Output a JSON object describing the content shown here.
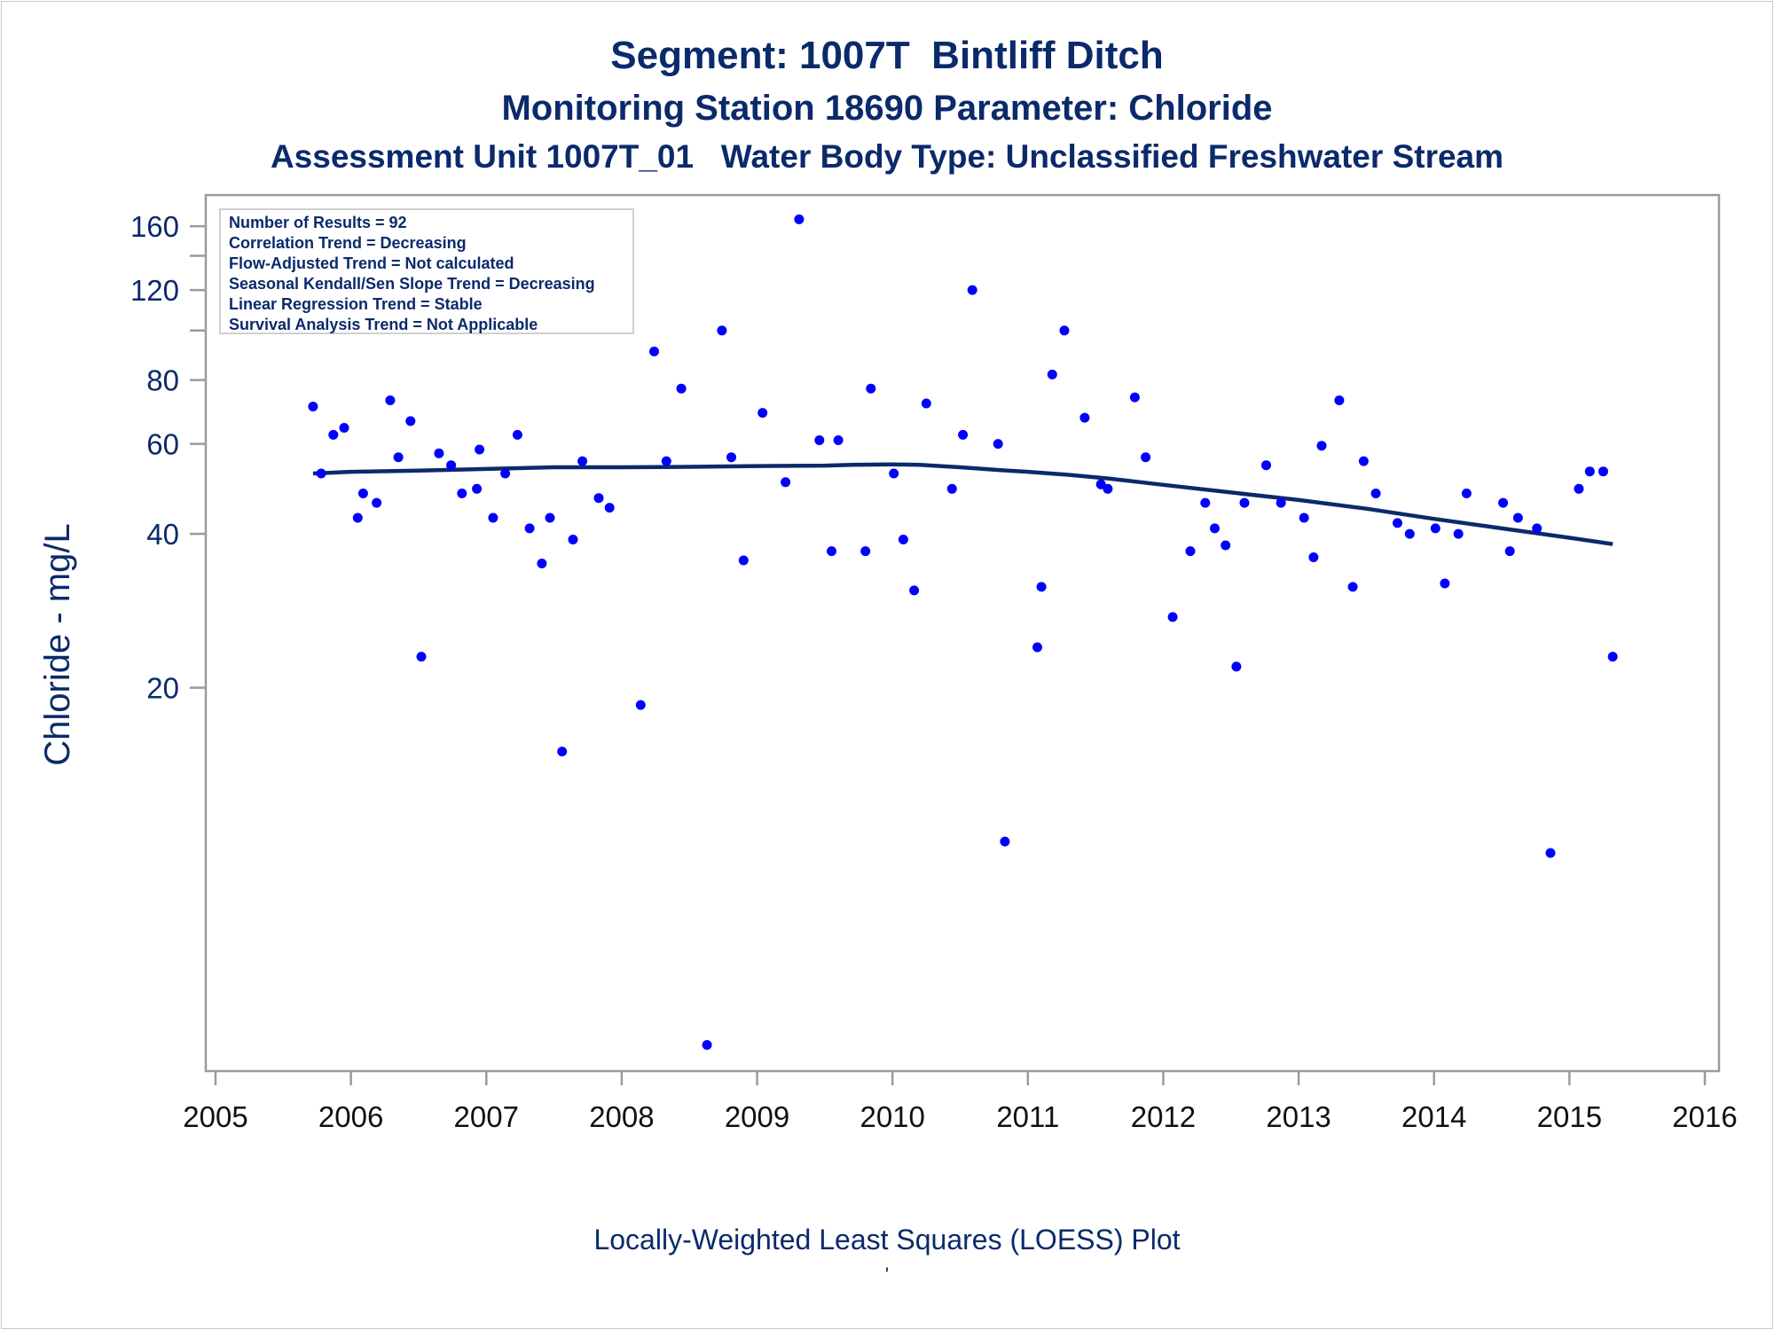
{
  "title": "Segment: 1007T  Bintliff Ditch",
  "subtitle": "Monitoring Station 18690 Parameter: Chloride",
  "subtitle2": "Assessment Unit 1007T_01   Water Body Type: Unclassified Freshwater Stream",
  "footnote": "Locally-Weighted Least Squares (LOESS) Plot",
  "footnote_mark": "'",
  "stats": [
    "Number of Results = 92",
    "Correlation Trend = Decreasing",
    "Flow-Adjusted Trend = Not calculated",
    "Seasonal Kendall/Sen Slope Trend = Decreasing",
    "Linear Regression Trend = Stable",
    "Survival Analysis Trend = Not Applicable"
  ],
  "colors": {
    "text": "#0b2a6b",
    "points": "#0000ff",
    "trend": "#0b2a6b",
    "axis": "#9a9a9a"
  },
  "chart_data": {
    "type": "scatter",
    "xlabel": "",
    "ylabel": "Chloride - mg/L",
    "x_ticks": [
      2005,
      2006,
      2007,
      2008,
      2009,
      2010,
      2011,
      2012,
      2013,
      2014,
      2015,
      2016
    ],
    "y_ticks": [
      20,
      40,
      60,
      80,
      120,
      160
    ],
    "y_scale": "log",
    "xlim": [
      2005,
      2016
    ],
    "ylim": [
      3.7,
      172
    ],
    "grid": false,
    "series": [
      {
        "name": "",
        "type": "scatter",
        "points": [
          [
            2005.72,
            71
          ],
          [
            2005.78,
            52.5
          ],
          [
            2005.87,
            62.5
          ],
          [
            2005.95,
            64.5
          ],
          [
            2006.05,
            43
          ],
          [
            2006.09,
            48
          ],
          [
            2006.19,
            46
          ],
          [
            2006.29,
            73
          ],
          [
            2006.35,
            56.5
          ],
          [
            2006.44,
            66.5
          ],
          [
            2006.52,
            23
          ],
          [
            2006.65,
            57.5
          ],
          [
            2006.74,
            54.5
          ],
          [
            2006.82,
            48
          ],
          [
            2006.93,
            49
          ],
          [
            2006.95,
            58.5
          ],
          [
            2007.05,
            43
          ],
          [
            2007.14,
            52.5
          ],
          [
            2007.23,
            62.5
          ],
          [
            2007.32,
            41
          ],
          [
            2007.41,
            35
          ],
          [
            2007.47,
            43
          ],
          [
            2007.56,
            15
          ],
          [
            2007.64,
            39
          ],
          [
            2007.71,
            55.5
          ],
          [
            2007.83,
            47
          ],
          [
            2007.91,
            45
          ],
          [
            2008.14,
            18.5
          ],
          [
            2008.24,
            91
          ],
          [
            2008.33,
            55.5
          ],
          [
            2008.44,
            77
          ],
          [
            2008.63,
            4
          ],
          [
            2008.74,
            100
          ],
          [
            2008.81,
            56.5
          ],
          [
            2008.9,
            35.5
          ],
          [
            2009.04,
            69
          ],
          [
            2009.21,
            50.5
          ],
          [
            2009.31,
            165
          ],
          [
            2009.46,
            61
          ],
          [
            2009.55,
            37
          ],
          [
            2009.6,
            61
          ],
          [
            2009.8,
            37
          ],
          [
            2009.84,
            77
          ],
          [
            2010.01,
            52.5
          ],
          [
            2010.08,
            39
          ],
          [
            2010.16,
            31
          ],
          [
            2010.25,
            72
          ],
          [
            2010.44,
            49
          ],
          [
            2010.52,
            62.5
          ],
          [
            2010.59,
            120
          ],
          [
            2010.78,
            60
          ],
          [
            2010.83,
            10
          ],
          [
            2011.07,
            24
          ],
          [
            2011.1,
            31.5
          ],
          [
            2011.18,
            82
          ],
          [
            2011.27,
            100
          ],
          [
            2011.42,
            67.5
          ],
          [
            2011.54,
            50
          ],
          [
            2011.59,
            49
          ],
          [
            2011.79,
            74
          ],
          [
            2011.87,
            56.5
          ],
          [
            2012.07,
            27.5
          ],
          [
            2012.2,
            37
          ],
          [
            2012.31,
            46
          ],
          [
            2012.38,
            41
          ],
          [
            2012.46,
            38
          ],
          [
            2012.54,
            22
          ],
          [
            2012.6,
            46
          ],
          [
            2012.76,
            54.5
          ],
          [
            2012.87,
            46
          ],
          [
            2013.04,
            43
          ],
          [
            2013.11,
            36
          ],
          [
            2013.17,
            59.5
          ],
          [
            2013.3,
            73
          ],
          [
            2013.4,
            31.5
          ],
          [
            2013.48,
            55.5
          ],
          [
            2013.57,
            48
          ],
          [
            2013.73,
            42
          ],
          [
            2013.82,
            40
          ],
          [
            2014.01,
            41
          ],
          [
            2014.08,
            32
          ],
          [
            2014.18,
            40
          ],
          [
            2014.24,
            48
          ],
          [
            2014.51,
            46
          ],
          [
            2014.56,
            37
          ],
          [
            2014.62,
            43
          ],
          [
            2014.76,
            41
          ],
          [
            2014.86,
            9.5
          ],
          [
            2015.07,
            49
          ],
          [
            2015.15,
            53
          ],
          [
            2015.25,
            53
          ],
          [
            2015.32,
            23
          ]
        ]
      },
      {
        "name": "",
        "type": "line",
        "points": [
          [
            2005.72,
            52.5
          ],
          [
            2006.0,
            52.9
          ],
          [
            2006.5,
            53.2
          ],
          [
            2007.0,
            53.6
          ],
          [
            2007.5,
            54.0
          ],
          [
            2008.0,
            54.0
          ],
          [
            2008.5,
            54.1
          ],
          [
            2009.0,
            54.3
          ],
          [
            2009.5,
            54.4
          ],
          [
            2009.7,
            54.6
          ],
          [
            2010.0,
            54.7
          ],
          [
            2010.2,
            54.6
          ],
          [
            2010.5,
            54.0
          ],
          [
            2010.8,
            53.3
          ],
          [
            2011.0,
            52.9
          ],
          [
            2011.3,
            52.2
          ],
          [
            2011.6,
            51.3
          ],
          [
            2012.0,
            49.9
          ],
          [
            2012.5,
            48.2
          ],
          [
            2013.0,
            46.6
          ],
          [
            2013.5,
            44.8
          ],
          [
            2014.0,
            42.8
          ],
          [
            2014.5,
            41.0
          ],
          [
            2015.0,
            39.3
          ],
          [
            2015.32,
            38.2
          ]
        ]
      }
    ]
  }
}
